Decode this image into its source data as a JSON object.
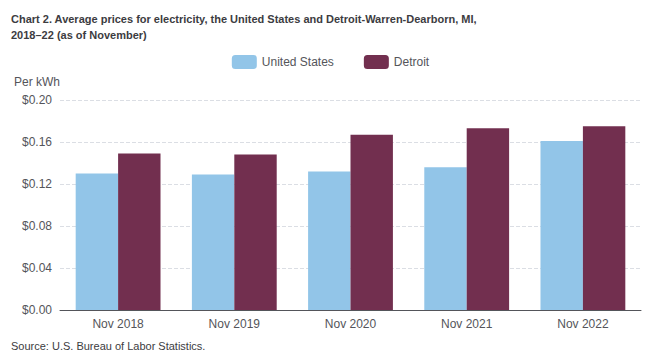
{
  "chart_data": {
    "type": "bar",
    "title": "Chart 2. Average prices for electricity, the United States and Detroit-Warren-Dearborn, MI,\n2018–22 (as of November)",
    "ylabel": "Per kWh",
    "annotations": [
      "Source: U.S. Bureau of Labor Statistics."
    ],
    "categories": [
      "Nov 2018",
      "Nov 2019",
      "Nov 2020",
      "Nov 2021",
      "Nov 2022"
    ],
    "series": [
      {
        "name": "United States",
        "color": "#92C5E8",
        "values": [
          0.13,
          0.129,
          0.132,
          0.136,
          0.161
        ]
      },
      {
        "name": "Detroit",
        "color": "#722F4F",
        "values": [
          0.149,
          0.148,
          0.167,
          0.173,
          0.175
        ]
      }
    ],
    "ylim": [
      0,
      0.2
    ],
    "yticks": [
      {
        "value": 0.0,
        "label": "$0.00"
      },
      {
        "value": 0.04,
        "label": "$0.04"
      },
      {
        "value": 0.08,
        "label": "$0.08"
      },
      {
        "value": 0.12,
        "label": "$0.12"
      },
      {
        "value": 0.16,
        "label": "$0.16"
      },
      {
        "value": 0.2,
        "label": "$0.20"
      }
    ],
    "grid": true,
    "legend": "top"
  }
}
